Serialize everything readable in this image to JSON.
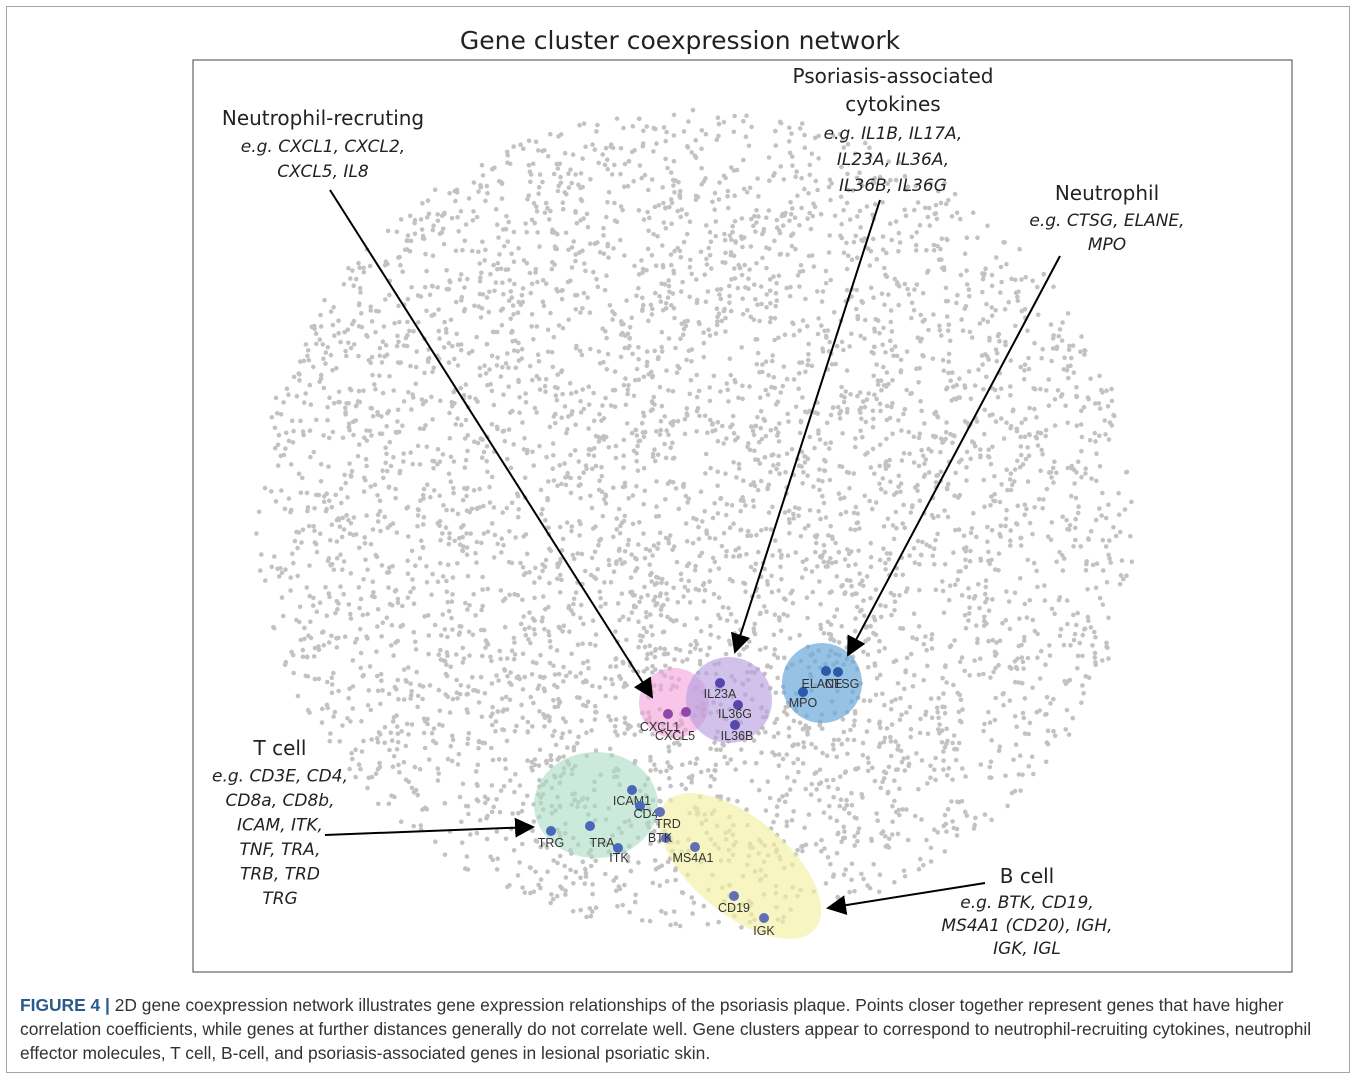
{
  "figure": {
    "title": "Gene cluster coexpression network",
    "annotations": [
      {
        "heading": [
          "Neutrophil-recruting"
        ],
        "examples": [
          "e.g. CXCL1, CXCL2,",
          "CXCL5, IL8"
        ]
      },
      {
        "heading": [
          "Psoriasis-associated",
          "cytokines"
        ],
        "examples": [
          "e.g. IL1B, IL17A,",
          "IL23A, IL36A,",
          "IL36B, IL36G"
        ]
      },
      {
        "heading": [
          "Neutrophil"
        ],
        "examples": [
          "e.g. CTSG, ELANE,",
          "MPO"
        ]
      },
      {
        "heading": [
          "T cell"
        ],
        "examples": [
          "e.g. CD3E, CD4,",
          "CD8a, CD8b,",
          "ICAM, ITK,",
          "TNF, TRA,",
          "TRB, TRD",
          "TRG"
        ]
      },
      {
        "heading": [
          "B cell"
        ],
        "examples": [
          "e.g. BTK, CD19,",
          "MS4A1 (CD20), IGH,",
          "IGK, IGL"
        ]
      }
    ],
    "gene_labels": [
      "IL23A",
      "IL36G",
      "IL36B",
      "CXCL1",
      "CXCL5",
      "MPO",
      "ELANE",
      "CTSG",
      "ICAM1",
      "CD4",
      "TRD",
      "BTK",
      "MS4A1",
      "TRG",
      "TRA",
      "ITK",
      "CD19",
      "IGK"
    ],
    "caption": {
      "label": "FIGURE 4 |",
      "text": "2D gene coexpression network illustrates gene expression relationships of the psoriasis plaque. Points closer together represent genes that have higher correlation coefficients, while genes at further distances generally do not correlate well. Gene clusters appear to correspond to neutrophil-recruiting cytokines, neutrophil effector molecules, T cell, B-cell, and psoriasis-associated genes in lesional psoriatic skin."
    }
  }
}
